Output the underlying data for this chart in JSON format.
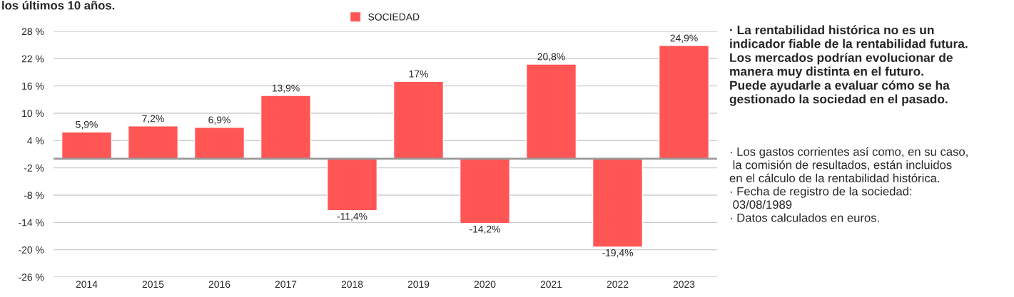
{
  "chart_data": {
    "type": "bar",
    "title": "los últimos 10 años.",
    "categories": [
      "2014",
      "2015",
      "2016",
      "2017",
      "2018",
      "2019",
      "2020",
      "2021",
      "2022",
      "2023"
    ],
    "series": [
      {
        "name": "SOCIEDAD",
        "color": "#ff5555",
        "values": [
          5.9,
          7.2,
          6.9,
          13.9,
          -11.4,
          17,
          -14.2,
          20.8,
          -19.4,
          24.9
        ],
        "value_labels": [
          "5,9%",
          "7,2%",
          "6,9%",
          "13,9%",
          "-11,4%",
          "17%",
          "-14,2%",
          "20,8%",
          "-19,4%",
          "24,9%"
        ]
      }
    ],
    "ylim": [
      -26,
      28
    ],
    "yticks": [
      {
        "value": -26,
        "label": "-26 %"
      },
      {
        "value": -20,
        "label": "-20 %"
      },
      {
        "value": -14,
        "label": "-14 %"
      },
      {
        "value": -8,
        "label": "-8 %"
      },
      {
        "value": -2,
        "label": "-2 %"
      },
      {
        "value": 4,
        "label": "4 %"
      },
      {
        "value": 10,
        "label": "10 %"
      },
      {
        "value": 16,
        "label": "16 %"
      },
      {
        "value": 22,
        "label": "22 %"
      },
      {
        "value": 28,
        "label": "28 %"
      }
    ],
    "ref_lines": [
      {
        "axis": "y",
        "value": 0,
        "color": "#999999"
      }
    ],
    "grid": "y",
    "legend": "top",
    "annotations": [
      "· La rentabilidad histórica no es un\nindicador fiable de la rentabilidad futura.\nLos mercados podrían evolucionar de\nmanera muy distinta en el futuro.\nPuede ayudarle a evaluar cómo se ha\ngestionado la sociedad en el pasado.",
      "· Los gastos corrientes así como, en su caso,\n la comisión de resultados, están incluidos\nen el cálculo de la rentabilidad histórica.\n· Fecha de registro de la sociedad:\n 03/08/1989\n· Datos calculados en euros."
    ]
  }
}
